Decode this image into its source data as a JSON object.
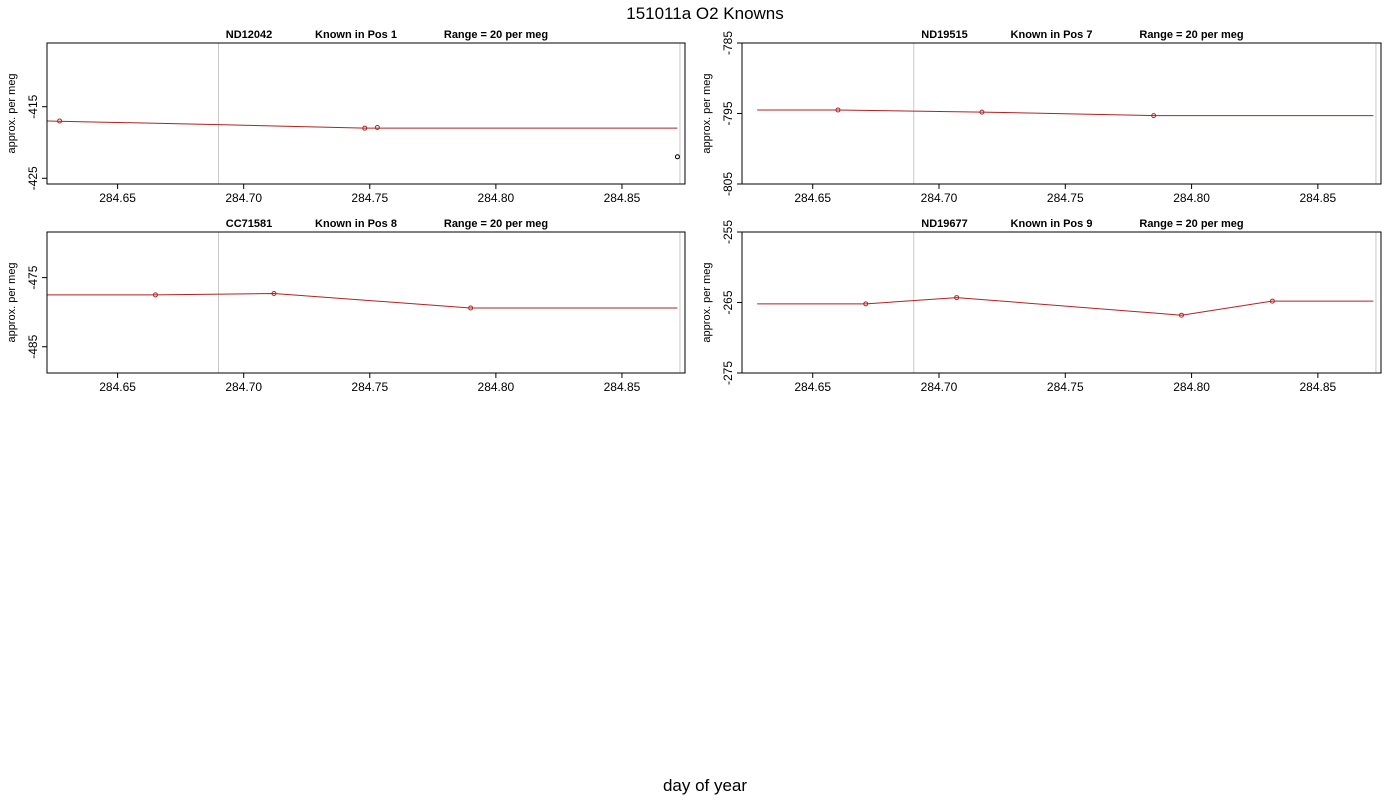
{
  "title": "151011a   O2 Knowns",
  "xlabel": "day of year",
  "chart_data": [
    {
      "type": "line",
      "id": "ND12042",
      "header": "ND12042",
      "position_label": "Known in Pos 1",
      "range_label": "Range = 20 per meg",
      "ylabel": "approx. per meg",
      "xlim": [
        284.622,
        284.875
      ],
      "ylim": [
        -425.8,
        -406.1
      ],
      "x_ticks": [
        "284.65",
        "284.70",
        "284.75",
        "284.80",
        "284.85"
      ],
      "y_ticks": [
        "-415",
        "-425"
      ],
      "vlines": [
        284.69,
        284.873
      ],
      "fit_line": {
        "x": [
          284.622,
          284.69,
          284.748,
          284.753,
          284.872
        ],
        "y": [
          -417.0,
          -417.5,
          -418.0,
          -418.0,
          -418.0
        ]
      },
      "points": [
        {
          "x": 284.627,
          "y": -417.0,
          "color": "#b22222"
        },
        {
          "x": 284.748,
          "y": -418.0,
          "color": "#b22222"
        },
        {
          "x": 284.753,
          "y": -417.9,
          "color": "#b22222"
        },
        {
          "x": 284.872,
          "y": -422.0,
          "color": "#000000"
        }
      ]
    },
    {
      "type": "line",
      "id": "ND19515",
      "header": "ND19515",
      "position_label": "Known in Pos 7",
      "range_label": "Range = 20 per meg",
      "ylabel": "approx. per meg",
      "xlim": [
        284.622,
        284.875
      ],
      "ylim": [
        -805.0,
        -785.0
      ],
      "x_ticks": [
        "284.65",
        "284.70",
        "284.75",
        "284.80",
        "284.85"
      ],
      "y_ticks": [
        "-785",
        "-795",
        "-805"
      ],
      "vlines": [
        284.69,
        284.873
      ],
      "fit_line": {
        "x": [
          284.628,
          284.66,
          284.717,
          284.785,
          284.872
        ],
        "y": [
          -794.5,
          -794.5,
          -794.8,
          -795.3,
          -795.3
        ]
      },
      "points": [
        {
          "x": 284.66,
          "y": -794.5,
          "color": "#b22222"
        },
        {
          "x": 284.717,
          "y": -794.8,
          "color": "#b22222"
        },
        {
          "x": 284.785,
          "y": -795.3,
          "color": "#b22222"
        }
      ]
    },
    {
      "type": "line",
      "id": "CC71581",
      "header": "CC71581",
      "position_label": "Known in Pos 8",
      "range_label": "Range = 20 per meg",
      "ylabel": "approx. per meg",
      "xlim": [
        284.622,
        284.875
      ],
      "ylim": [
        -488.8,
        -468.4
      ],
      "x_ticks": [
        "284.65",
        "284.70",
        "284.75",
        "284.80",
        "284.85"
      ],
      "y_ticks": [
        "-475",
        "-485"
      ],
      "vlines": [
        284.69,
        284.873
      ],
      "fit_line": {
        "x": [
          284.622,
          284.665,
          284.712,
          284.79,
          284.872
        ],
        "y": [
          -477.5,
          -477.5,
          -477.3,
          -479.4,
          -479.4
        ]
      },
      "points": [
        {
          "x": 284.665,
          "y": -477.5,
          "color": "#b22222"
        },
        {
          "x": 284.712,
          "y": -477.3,
          "color": "#b22222"
        },
        {
          "x": 284.79,
          "y": -479.4,
          "color": "#b22222"
        }
      ]
    },
    {
      "type": "line",
      "id": "ND19677",
      "header": "ND19677",
      "position_label": "Known in Pos 9",
      "range_label": "Range = 20 per meg",
      "ylabel": "approx. per meg",
      "xlim": [
        284.622,
        284.875
      ],
      "ylim": [
        -275.0,
        -255.0
      ],
      "x_ticks": [
        "284.65",
        "284.70",
        "284.75",
        "284.80",
        "284.85"
      ],
      "y_ticks": [
        "-255",
        "-265",
        "-275"
      ],
      "vlines": [
        284.69,
        284.873
      ],
      "fit_line": {
        "x": [
          284.628,
          284.671,
          284.707,
          284.796,
          284.832,
          284.872
        ],
        "y": [
          -265.2,
          -265.2,
          -264.3,
          -266.8,
          -264.8,
          -264.8
        ]
      },
      "points": [
        {
          "x": 284.671,
          "y": -265.2,
          "color": "#b22222"
        },
        {
          "x": 284.707,
          "y": -264.3,
          "color": "#b22222"
        },
        {
          "x": 284.796,
          "y": -266.8,
          "color": "#b22222"
        },
        {
          "x": 284.832,
          "y": -264.8,
          "color": "#b22222"
        }
      ]
    }
  ]
}
